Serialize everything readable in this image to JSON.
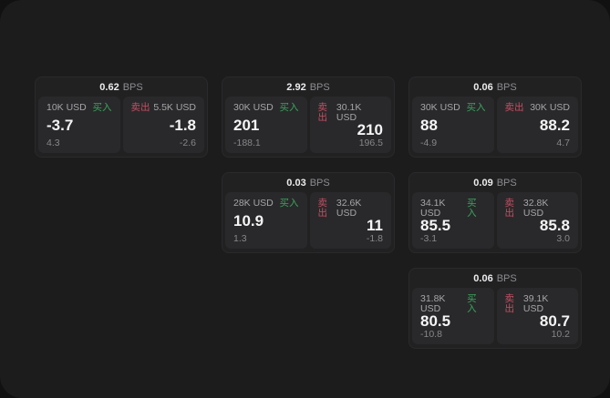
{
  "labels": {
    "bps_suffix": "BPS",
    "buy": "买入",
    "sell": "卖出"
  },
  "colors": {
    "buy_accent": "#3aa45c",
    "sell_accent": "#c44f63",
    "window_bg": "#1c1c1d",
    "card_bg": "#212122",
    "panel_bg": "#29292b"
  },
  "cards": [
    {
      "bps": "0.62",
      "buy": {
        "amount": "10K USD",
        "main": "-3.7",
        "sub": "4.3"
      },
      "sell": {
        "amount": "5.5K USD",
        "main": "-1.8",
        "sub": "-2.6"
      }
    },
    {
      "bps": "2.92",
      "buy": {
        "amount": "30K USD",
        "main": "201",
        "sub": "-188.1"
      },
      "sell": {
        "amount": "30.1K USD",
        "main": "210",
        "sub": "196.5"
      }
    },
    {
      "bps": "0.03",
      "buy": {
        "amount": "28K USD",
        "main": "10.9",
        "sub": "1.3"
      },
      "sell": {
        "amount": "32.6K USD",
        "main": "11",
        "sub": "-1.8"
      }
    },
    {
      "bps": "0.06",
      "buy": {
        "amount": "30K USD",
        "main": "88",
        "sub": "-4.9"
      },
      "sell": {
        "amount": "30K USD",
        "main": "88.2",
        "sub": "4.7"
      }
    },
    {
      "bps": "0.09",
      "buy": {
        "amount": "34.1K USD",
        "main": "85.5",
        "sub": "-3.1"
      },
      "sell": {
        "amount": "32.8K USD",
        "main": "85.8",
        "sub": "3.0"
      }
    },
    {
      "bps": "0.06",
      "buy": {
        "amount": "31.8K USD",
        "main": "80.5",
        "sub": "-10.8"
      },
      "sell": {
        "amount": "39.1K USD",
        "main": "80.7",
        "sub": "10.2"
      }
    }
  ]
}
